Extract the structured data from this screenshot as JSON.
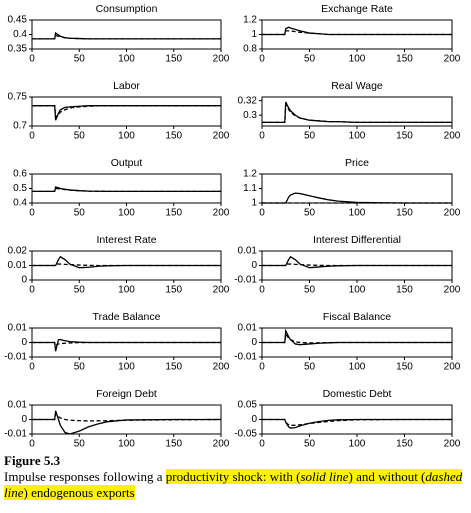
{
  "chart_data": [
    {
      "type": "line",
      "title": "Consumption",
      "x": [
        0,
        24,
        25,
        28,
        30,
        35,
        40,
        50,
        60,
        70,
        80,
        100,
        150,
        200
      ],
      "xlim": [
        0,
        200
      ],
      "xticks": [
        0,
        50,
        100,
        150,
        200
      ],
      "ylim": [
        0.35,
        0.45
      ],
      "yticks": [
        0.35,
        0.4,
        0.45
      ],
      "series": [
        {
          "color": "#000000",
          "dashed": false,
          "values": [
            0.385,
            0.385,
            0.405,
            0.398,
            0.394,
            0.389,
            0.387,
            0.386,
            0.385,
            0.385,
            0.385,
            0.385,
            0.385,
            0.385
          ]
        },
        {
          "color": "#000000",
          "dashed": true,
          "values": [
            0.385,
            0.385,
            0.396,
            0.394,
            0.392,
            0.389,
            0.387,
            0.386,
            0.385,
            0.385,
            0.385,
            0.385,
            0.385,
            0.385
          ]
        }
      ]
    },
    {
      "type": "line",
      "title": "Exchange Rate",
      "x": [
        0,
        24,
        25,
        28,
        30,
        35,
        40,
        50,
        60,
        70,
        80,
        100,
        150,
        200
      ],
      "xlim": [
        0,
        200
      ],
      "xticks": [
        0,
        50,
        100,
        150,
        200
      ],
      "ylim": [
        0.8,
        1.2
      ],
      "yticks": [
        0.8,
        1,
        1.2
      ],
      "series": [
        {
          "color": "#000000",
          "dashed": false,
          "values": [
            1,
            1,
            1.08,
            1.1,
            1.09,
            1.07,
            1.05,
            1.02,
            1.01,
            1,
            1,
            1,
            1,
            1
          ]
        },
        {
          "color": "#000000",
          "dashed": true,
          "values": [
            1,
            1,
            1.05,
            1.05,
            1.05,
            1.04,
            1.03,
            1.02,
            1.01,
            1,
            1,
            1,
            1,
            1
          ]
        }
      ]
    },
    {
      "type": "line",
      "title": "Labor",
      "x": [
        0,
        24,
        25,
        28,
        30,
        35,
        40,
        50,
        60,
        70,
        80,
        100,
        150,
        200
      ],
      "xlim": [
        0,
        200
      ],
      "xticks": [
        0,
        50,
        100,
        150,
        200
      ],
      "ylim": [
        0.7,
        0.75
      ],
      "yticks": [
        0.7,
        0.75
      ],
      "series": [
        {
          "color": "#000000",
          "dashed": false,
          "values": [
            0.735,
            0.735,
            0.71,
            0.722,
            0.728,
            0.732,
            0.733,
            0.734,
            0.735,
            0.735,
            0.735,
            0.735,
            0.735,
            0.735
          ]
        },
        {
          "color": "#000000",
          "dashed": true,
          "values": [
            0.735,
            0.735,
            0.715,
            0.72,
            0.724,
            0.728,
            0.731,
            0.733,
            0.734,
            0.735,
            0.735,
            0.735,
            0.735,
            0.735
          ]
        }
      ]
    },
    {
      "type": "line",
      "title": "Real Wage",
      "x": [
        0,
        24,
        25,
        28,
        30,
        35,
        40,
        50,
        60,
        70,
        80,
        100,
        150,
        200
      ],
      "xlim": [
        0,
        200
      ],
      "xticks": [
        0,
        50,
        100,
        150,
        200
      ],
      "ylim": [
        0.285,
        0.325
      ],
      "yticks": [
        0.3,
        0.32
      ],
      "series": [
        {
          "color": "#000000",
          "dashed": false,
          "values": [
            0.29,
            0.29,
            0.318,
            0.31,
            0.306,
            0.3,
            0.296,
            0.293,
            0.292,
            0.291,
            0.291,
            0.29,
            0.29,
            0.29
          ]
        },
        {
          "color": "#000000",
          "dashed": true,
          "values": [
            0.29,
            0.29,
            0.315,
            0.308,
            0.304,
            0.299,
            0.296,
            0.293,
            0.292,
            0.291,
            0.291,
            0.29,
            0.29,
            0.29
          ]
        }
      ]
    },
    {
      "type": "line",
      "title": "Output",
      "x": [
        0,
        24,
        25,
        28,
        30,
        35,
        40,
        50,
        60,
        70,
        80,
        100,
        150,
        200
      ],
      "xlim": [
        0,
        200
      ],
      "xticks": [
        0,
        50,
        100,
        150,
        200
      ],
      "ylim": [
        0.4,
        0.6
      ],
      "yticks": [
        0.4,
        0.5,
        0.6
      ],
      "series": [
        {
          "color": "#000000",
          "dashed": false,
          "values": [
            0.48,
            0.48,
            0.51,
            0.505,
            0.5,
            0.495,
            0.49,
            0.485,
            0.482,
            0.481,
            0.48,
            0.48,
            0.48,
            0.48
          ]
        },
        {
          "color": "#000000",
          "dashed": true,
          "values": [
            0.48,
            0.48,
            0.5,
            0.498,
            0.496,
            0.492,
            0.489,
            0.485,
            0.482,
            0.481,
            0.48,
            0.48,
            0.48,
            0.48
          ]
        }
      ]
    },
    {
      "type": "line",
      "title": "Price",
      "x": [
        0,
        24,
        25,
        28,
        30,
        35,
        40,
        50,
        60,
        70,
        80,
        100,
        150,
        200
      ],
      "xlim": [
        0,
        200
      ],
      "xticks": [
        0,
        50,
        100,
        150,
        200
      ],
      "ylim": [
        1,
        1.2
      ],
      "yticks": [
        1,
        1.1,
        1.2
      ],
      "series": [
        {
          "color": "#000000",
          "dashed": false,
          "values": [
            1,
            1,
            1,
            1.04,
            1.055,
            1.068,
            1.065,
            1.05,
            1.035,
            1.022,
            1.013,
            1.004,
            1,
            1
          ]
        },
        {
          "color": "#000000",
          "dashed": true,
          "values": [
            1,
            1,
            1,
            1,
            1,
            1,
            1,
            1,
            1,
            1,
            1,
            1,
            1,
            1
          ]
        }
      ]
    },
    {
      "type": "line",
      "title": "Interest Rate",
      "x": [
        0,
        24,
        25,
        28,
        30,
        35,
        40,
        50,
        60,
        70,
        80,
        100,
        150,
        200
      ],
      "xlim": [
        0,
        200
      ],
      "xticks": [
        0,
        50,
        100,
        150,
        200
      ],
      "ylim": [
        0,
        0.02
      ],
      "yticks": [
        0,
        0.01,
        0.02
      ],
      "series": [
        {
          "color": "#000000",
          "dashed": false,
          "values": [
            0.01,
            0.01,
            0.01,
            0.014,
            0.016,
            0.014,
            0.011,
            0.0085,
            0.0088,
            0.0095,
            0.0098,
            0.01,
            0.01,
            0.01
          ]
        },
        {
          "color": "#000000",
          "dashed": true,
          "values": [
            0.01,
            0.01,
            0.011,
            0.011,
            0.011,
            0.0108,
            0.0106,
            0.0103,
            0.0101,
            0.01,
            0.01,
            0.01,
            0.01,
            0.01
          ]
        }
      ]
    },
    {
      "type": "line",
      "title": "Interest Differential",
      "x": [
        0,
        24,
        25,
        28,
        30,
        35,
        40,
        50,
        60,
        70,
        80,
        100,
        150,
        200
      ],
      "xlim": [
        0,
        200
      ],
      "xticks": [
        0,
        50,
        100,
        150,
        200
      ],
      "ylim": [
        -0.01,
        0.01
      ],
      "yticks": [
        -0.01,
        0,
        0.01
      ],
      "series": [
        {
          "color": "#000000",
          "dashed": false,
          "values": [
            0,
            0,
            0,
            0.004,
            0.006,
            0.004,
            0.001,
            -0.0015,
            -0.001,
            -0.0005,
            -0.0002,
            0,
            0,
            0
          ]
        },
        {
          "color": "#000000",
          "dashed": true,
          "values": [
            0,
            0,
            0.001,
            0.001,
            0.001,
            0.0008,
            0.0006,
            0.0003,
            0.0001,
            0,
            0,
            0,
            0,
            0
          ]
        }
      ]
    },
    {
      "type": "line",
      "title": "Trade Balance",
      "x": [
        0,
        24,
        25,
        28,
        30,
        35,
        40,
        50,
        60,
        70,
        80,
        100,
        150,
        200
      ],
      "xlim": [
        0,
        200
      ],
      "xticks": [
        0,
        50,
        100,
        150,
        200
      ],
      "ylim": [
        -0.01,
        0.01
      ],
      "yticks": [
        -0.01,
        0,
        0.01
      ],
      "series": [
        {
          "color": "#000000",
          "dashed": false,
          "values": [
            0,
            0,
            -0.006,
            0.002,
            0.002,
            0.0012,
            0.0006,
            0.0002,
            0,
            0,
            0,
            0,
            0,
            0
          ]
        },
        {
          "color": "#000000",
          "dashed": true,
          "values": [
            0,
            0,
            -0.002,
            -0.001,
            -0.0008,
            -0.0005,
            -0.0003,
            -0.0001,
            0,
            0,
            0,
            0,
            0,
            0
          ]
        }
      ]
    },
    {
      "type": "line",
      "title": "Fiscal Balance",
      "x": [
        0,
        24,
        25,
        28,
        30,
        35,
        40,
        50,
        60,
        70,
        80,
        100,
        150,
        200
      ],
      "xlim": [
        0,
        200
      ],
      "xticks": [
        0,
        50,
        100,
        150,
        200
      ],
      "ylim": [
        -0.01,
        0.01
      ],
      "yticks": [
        -0.01,
        0,
        0.01
      ],
      "series": [
        {
          "color": "#000000",
          "dashed": false,
          "values": [
            0,
            0,
            0.008,
            0.004,
            0.002,
            -0.001,
            -0.0015,
            -0.001,
            -0.0005,
            -0.0002,
            0,
            0,
            0,
            0
          ]
        },
        {
          "color": "#000000",
          "dashed": true,
          "values": [
            0,
            0,
            0.006,
            0.003,
            0.002,
            0.0005,
            0,
            -0.0003,
            -0.0002,
            -0.0001,
            0,
            0,
            0,
            0
          ]
        }
      ]
    },
    {
      "type": "line",
      "title": "Foreign Debt",
      "x": [
        0,
        24,
        25,
        28,
        30,
        35,
        40,
        50,
        60,
        70,
        80,
        100,
        150,
        200
      ],
      "xlim": [
        0,
        200
      ],
      "xticks": [
        0,
        50,
        100,
        150,
        200
      ],
      "ylim": [
        -0.01,
        0.01
      ],
      "yticks": [
        -0.01,
        0,
        0.01
      ],
      "series": [
        {
          "color": "#000000",
          "dashed": false,
          "values": [
            0,
            0,
            0.006,
            0,
            -0.004,
            -0.009,
            -0.01,
            -0.008,
            -0.005,
            -0.003,
            -0.0015,
            -0.0003,
            0,
            0
          ]
        },
        {
          "color": "#000000",
          "dashed": true,
          "values": [
            0,
            0,
            0.004,
            0.002,
            0.001,
            0,
            -0.0005,
            -0.0008,
            -0.001,
            -0.0009,
            -0.0008,
            -0.0005,
            -0.0002,
            0
          ]
        }
      ]
    },
    {
      "type": "line",
      "title": "Domestic Debt",
      "x": [
        0,
        24,
        25,
        28,
        30,
        35,
        40,
        50,
        60,
        70,
        80,
        100,
        150,
        200
      ],
      "xlim": [
        0,
        200
      ],
      "xticks": [
        0,
        50,
        100,
        150,
        200
      ],
      "ylim": [
        -0.05,
        0.05
      ],
      "yticks": [
        -0.05,
        0,
        0.05
      ],
      "series": [
        {
          "color": "#000000",
          "dashed": false,
          "values": [
            0,
            0,
            -0.01,
            -0.025,
            -0.03,
            -0.028,
            -0.022,
            -0.013,
            -0.007,
            -0.003,
            -0.001,
            0,
            0,
            0
          ]
        },
        {
          "color": "#000000",
          "dashed": true,
          "values": [
            0,
            0,
            -0.01,
            -0.018,
            -0.02,
            -0.02,
            -0.018,
            -0.014,
            -0.01,
            -0.007,
            -0.004,
            -0.001,
            0,
            0
          ]
        }
      ]
    }
  ],
  "caption": {
    "label": "Figure 5.3",
    "parts": [
      {
        "text": "Impulse responses following a ",
        "italic": false,
        "highlight": false
      },
      {
        "text": "productivity shock: with (",
        "italic": false,
        "highlight": true
      },
      {
        "text": "solid line",
        "italic": true,
        "highlight": true
      },
      {
        "text": ") and without (",
        "italic": false,
        "highlight": true
      },
      {
        "text": "dashed line",
        "italic": true,
        "highlight": true
      },
      {
        "text": ") endogenous exports",
        "italic": false,
        "highlight": true
      }
    ]
  }
}
